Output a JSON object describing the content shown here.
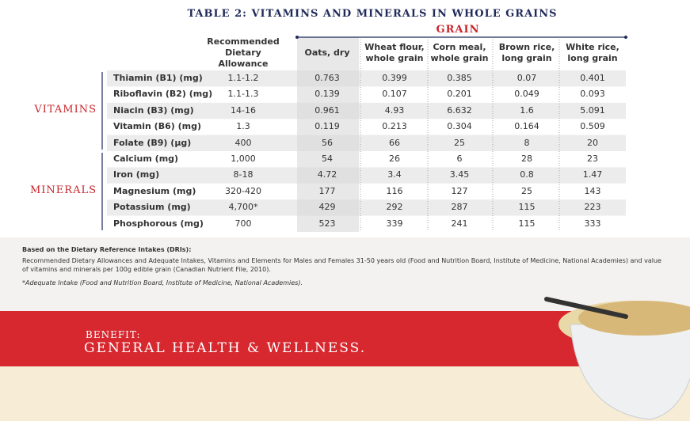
{
  "title": "TABLE 2: VITAMINS AND MINERALS IN WHOLE GRAINS",
  "grain_label": "GRAIN",
  "columns": [
    "Recommended Dietary Allowance",
    "Oats, dry",
    "Wheat flour, whole grain",
    "Corn meal, whole grain",
    "Brown rice, long grain",
    "White rice, long grain"
  ],
  "groups": [
    {
      "label": "VITAMINS",
      "rows": [
        0,
        1,
        2,
        3,
        4
      ]
    },
    {
      "label": "MINERALS",
      "rows": [
        5,
        6,
        7,
        8,
        9
      ]
    }
  ],
  "rows": [
    {
      "label": "Thiamin (B1) (mg)",
      "cells": [
        "1.1-1.2",
        "0.763",
        "0.399",
        "0.385",
        "0.07",
        "0.401"
      ]
    },
    {
      "label": "Riboflavin (B2) (mg)",
      "cells": [
        "1.1-1.3",
        "0.139",
        "0.107",
        "0.201",
        "0.049",
        "0.093"
      ]
    },
    {
      "label": "Niacin (B3) (mg)",
      "cells": [
        "14-16",
        "0.961",
        "4.93",
        "6.632",
        "1.6",
        "5.091"
      ]
    },
    {
      "label": "Vitamin (B6) (mg)",
      "cells": [
        "1.3",
        "0.119",
        "0.213",
        "0.304",
        "0.164",
        "0.509"
      ]
    },
    {
      "label": "Folate (B9) (µg)",
      "cells": [
        "400",
        "56",
        "66",
        "25",
        "8",
        "20"
      ]
    },
    {
      "label": "Calcium (mg)",
      "cells": [
        "1,000",
        "54",
        "26",
        "6",
        "28",
        "23"
      ]
    },
    {
      "label": "Iron (mg)",
      "cells": [
        "8-18",
        "4.72",
        "3.4",
        "3.45",
        "0.8",
        "1.47"
      ]
    },
    {
      "label": "Magnesium (mg)",
      "cells": [
        "320-420",
        "177",
        "116",
        "127",
        "25",
        "143"
      ]
    },
    {
      "label": "Potassium (mg)",
      "cells": [
        "4,700*",
        "429",
        "292",
        "287",
        "115",
        "223"
      ]
    },
    {
      "label": "Phosphorous (mg)",
      "cells": [
        "700",
        "523",
        "339",
        "241",
        "115",
        "333"
      ]
    }
  ],
  "notes": {
    "heading": "Based on the Dietary Reference Intakes (DRIs):",
    "body": "Recommended Dietary Allowances and Adequate Intakes, Vitamins and Elements for Males and Females 31-50 years old (Food and Nutrition Board, Institute of Medicine, National Academies) and value of vitamins and minerals per 100g edible grain (Canadian Nutrient File, 2010).",
    "footnote": "*Adequate Intake (Food and Nutrition Board, Institute of Medicine, National Academies)."
  },
  "banner": {
    "kicker": "BENEFIT:",
    "headline": "GENERAL HEALTH & WELLNESS."
  }
}
